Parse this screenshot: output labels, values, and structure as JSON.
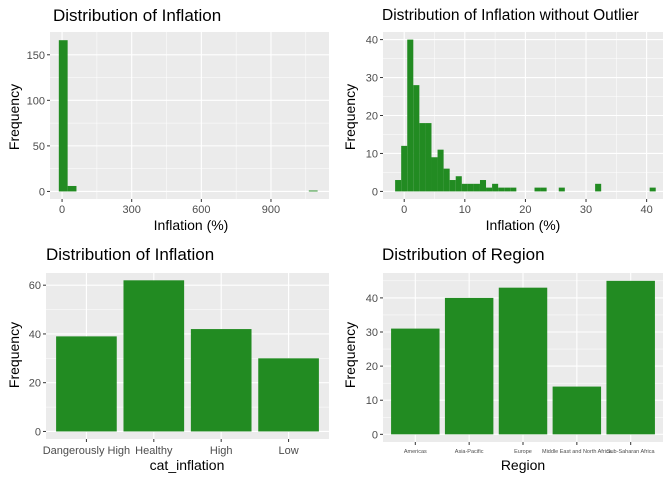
{
  "colors": {
    "bar": "#228B22",
    "panel": "#EBEBEB",
    "grid_major": "#FFFFFF",
    "tick_text": "#4D4D4D"
  },
  "chart_data": [
    {
      "type": "bar",
      "subtype": "histogram",
      "title": "Distribution of Inflation",
      "xlabel": "Inflation (%)",
      "ylabel": "Frequency",
      "xlim": [
        -52,
        1150
      ],
      "ylim": [
        -8.3,
        175
      ],
      "xticks": [
        0,
        300,
        600,
        900
      ],
      "xtick_labels": [
        "0",
        "300",
        "600",
        "900"
      ],
      "yticks": [
        0,
        50,
        100,
        150
      ],
      "ytick_labels": [
        "0",
        "50",
        "100",
        "150"
      ],
      "bins": [
        {
          "x0": -14,
          "x1": 24,
          "value": 166
        },
        {
          "x0": 24,
          "x1": 62,
          "value": 6
        },
        {
          "x0": 1063,
          "x1": 1101,
          "value": 1
        }
      ]
    },
    {
      "type": "bar",
      "subtype": "histogram",
      "title": "Distribution of Inflation without Outlier",
      "xlabel": "Inflation (%)",
      "ylabel": "Frequency",
      "xlim": [
        -3.5,
        42.7
      ],
      "ylim": [
        -2,
        42
      ],
      "xticks": [
        0,
        10,
        20,
        30,
        40
      ],
      "xtick_labels": [
        "0",
        "10",
        "20",
        "30",
        "40"
      ],
      "yticks": [
        0,
        10,
        20,
        30,
        40
      ],
      "ytick_labels": [
        "0",
        "10",
        "20",
        "30",
        "40"
      ],
      "bins": [
        {
          "x0": -1.5,
          "x1": -0.5,
          "value": 3
        },
        {
          "x0": -0.5,
          "x1": 0.5,
          "value": 12
        },
        {
          "x0": 0.5,
          "x1": 1.5,
          "value": 40
        },
        {
          "x0": 1.5,
          "x1": 2.5,
          "value": 28
        },
        {
          "x0": 2.5,
          "x1": 3.5,
          "value": 18
        },
        {
          "x0": 3.5,
          "x1": 4.5,
          "value": 18
        },
        {
          "x0": 4.5,
          "x1": 5.5,
          "value": 9
        },
        {
          "x0": 5.5,
          "x1": 6.5,
          "value": 11
        },
        {
          "x0": 6.5,
          "x1": 7.5,
          "value": 6
        },
        {
          "x0": 7.5,
          "x1": 8.5,
          "value": 3
        },
        {
          "x0": 8.5,
          "x1": 9.5,
          "value": 4
        },
        {
          "x0": 9.5,
          "x1": 10.5,
          "value": 2
        },
        {
          "x0": 10.5,
          "x1": 11.5,
          "value": 2
        },
        {
          "x0": 11.5,
          "x1": 12.5,
          "value": 2
        },
        {
          "x0": 12.5,
          "x1": 13.5,
          "value": 3
        },
        {
          "x0": 13.5,
          "x1": 14.5,
          "value": 1
        },
        {
          "x0": 14.5,
          "x1": 15.5,
          "value": 2
        },
        {
          "x0": 15.5,
          "x1": 16.5,
          "value": 1
        },
        {
          "x0": 16.5,
          "x1": 17.5,
          "value": 1
        },
        {
          "x0": 17.5,
          "x1": 18.5,
          "value": 1
        },
        {
          "x0": 21.5,
          "x1": 22.5,
          "value": 1
        },
        {
          "x0": 22.5,
          "x1": 23.5,
          "value": 1
        },
        {
          "x0": 25.5,
          "x1": 26.5,
          "value": 1
        },
        {
          "x0": 31.5,
          "x1": 32.5,
          "value": 2
        },
        {
          "x0": 40.5,
          "x1": 41.5,
          "value": 1
        }
      ]
    },
    {
      "type": "bar",
      "title": "Distribution of Inflation",
      "xlabel": "cat_inflation",
      "ylabel": "Frequency",
      "ylim": [
        -3.1,
        65
      ],
      "yticks": [
        0,
        20,
        40,
        60
      ],
      "ytick_labels": [
        "0",
        "20",
        "40",
        "60"
      ],
      "categories": [
        "Dangerously High",
        "Healthy",
        "High",
        "Low"
      ],
      "values": [
        39,
        62,
        42,
        30
      ]
    },
    {
      "type": "bar",
      "title": "Distribution of Region",
      "xlabel": "Region",
      "ylabel": "Frequency",
      "ylim": [
        -2.25,
        47.3
      ],
      "yticks": [
        0,
        10,
        20,
        30,
        40
      ],
      "ytick_labels": [
        "0",
        "10",
        "20",
        "30",
        "40"
      ],
      "categories": [
        "Americas",
        "Asia-Pacific",
        "Europe",
        "Middle East and North Africa",
        "Sub-Saharan Africa"
      ],
      "values": [
        31,
        40,
        43,
        14,
        45
      ]
    }
  ]
}
